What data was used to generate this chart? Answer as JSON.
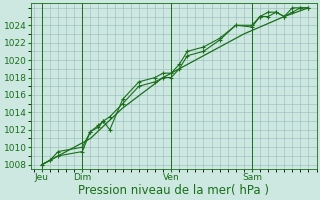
{
  "bg_color": "#cce8e0",
  "grid_major_color": "#99bbbb",
  "grid_minor_color": "#bbdddd",
  "line_color": "#1a6e1a",
  "xlabel": "Pression niveau de la mer( hPa )",
  "xlabel_fontsize": 8.5,
  "ylim": [
    1007.5,
    1026.5
  ],
  "yticks": [
    1008,
    1010,
    1012,
    1014,
    1016,
    1018,
    1020,
    1022,
    1024
  ],
  "tick_fontsize": 6.5,
  "xtick_labels": [
    "Jeu",
    "Dim",
    "Ven",
    "Sam"
  ],
  "xtick_positions": [
    0.5,
    3.0,
    8.5,
    13.5
  ],
  "xlim": [
    -0.2,
    17.5
  ],
  "vline_positions": [
    0.5,
    3.0,
    8.5,
    13.5
  ],
  "series1_x": [
    0.5,
    1.0,
    1.5,
    3.0,
    3.5,
    4.0,
    4.3,
    4.7,
    5.5,
    6.5,
    7.5,
    8.0,
    8.5,
    9.0,
    9.5,
    10.5,
    11.5,
    12.5,
    13.5,
    14.0,
    14.5,
    15.0,
    15.5,
    16.0,
    16.5,
    17.0
  ],
  "series1_y": [
    1008,
    1008.5,
    1009.0,
    1009.5,
    1011.8,
    1012.3,
    1013.0,
    1013.5,
    1015.0,
    1017.0,
    1017.5,
    1018.0,
    1018.0,
    1019.0,
    1020.5,
    1021.0,
    1022.3,
    1024.0,
    1023.8,
    1025.0,
    1025.5,
    1025.5,
    1025.0,
    1026.0,
    1026.0,
    1026.0
  ],
  "series2_x": [
    0.5,
    1.0,
    1.5,
    3.0,
    3.5,
    4.0,
    4.3,
    4.7,
    5.5,
    6.5,
    7.5,
    8.0,
    8.5,
    9.0,
    9.5,
    10.5,
    11.5,
    12.5,
    13.5,
    14.0,
    14.5,
    15.0,
    15.5,
    16.0,
    16.5,
    17.0
  ],
  "series2_y": [
    1008,
    1008.5,
    1009.5,
    1010.0,
    1011.8,
    1012.5,
    1013.0,
    1012.0,
    1015.5,
    1017.5,
    1018.0,
    1018.5,
    1018.5,
    1019.5,
    1021.0,
    1021.5,
    1022.5,
    1024.0,
    1024.0,
    1025.0,
    1025.0,
    1025.5,
    1025.0,
    1025.5,
    1026.0,
    1026.0
  ],
  "series3_x": [
    0.5,
    2.0,
    3.5,
    5.5,
    8.0,
    10.5,
    13.0,
    15.5,
    17.0
  ],
  "series3_y": [
    1008,
    1009.5,
    1011.0,
    1014.5,
    1018.0,
    1020.5,
    1023.0,
    1025.0,
    1026.0
  ]
}
